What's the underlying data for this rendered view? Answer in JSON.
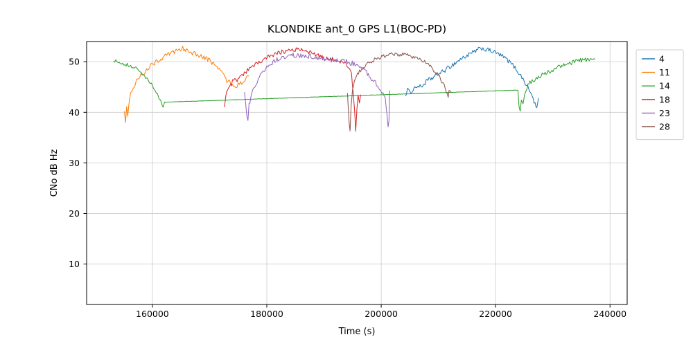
{
  "figure": {
    "title": "KLONDIKE ant_0 GPS L1(BOC-PD)"
  },
  "chart_data": {
    "type": "line",
    "title": "KLONDIKE ant_0 GPS L1(BOC-PD)",
    "xlabel": "Time (s)",
    "ylabel": "CNo dB Hz",
    "xlim": [
      148500,
      243000
    ],
    "ylim": [
      2,
      54
    ],
    "xticks": [
      160000,
      180000,
      200000,
      220000,
      240000
    ],
    "yticks": [
      10,
      20,
      30,
      40,
      50
    ],
    "grid": true,
    "grid_color": "#cccccc",
    "axis_color": "#000000",
    "legend": {
      "position": "outside-right",
      "entries": [
        "4",
        "11",
        "14",
        "18",
        "23",
        "28"
      ]
    },
    "series": [
      {
        "name": "4",
        "color": "#1f77b4",
        "segments": [
          {
            "noise": 0.45,
            "points": [
              [
                204200,
                43.2
              ],
              [
                204600,
                44.6
              ],
              [
                205000,
                43.8
              ],
              [
                205600,
                44.6
              ],
              [
                206200,
                45.2
              ],
              [
                207000,
                45.0
              ],
              [
                208000,
                46.2
              ],
              [
                209000,
                46.8
              ],
              [
                210000,
                47.6
              ],
              [
                211000,
                48.2
              ],
              [
                212000,
                49.0
              ],
              [
                213000,
                49.8
              ],
              [
                214000,
                50.6
              ],
              [
                215000,
                51.2
              ],
              [
                216000,
                51.8
              ],
              [
                217000,
                52.4
              ],
              [
                217600,
                52.7
              ],
              [
                218300,
                52.4
              ],
              [
                219000,
                52.2
              ],
              [
                220000,
                51.8
              ],
              [
                221000,
                51.2
              ],
              [
                221800,
                50.6
              ],
              [
                222600,
                49.8
              ],
              [
                223400,
                48.8
              ],
              [
                224200,
                47.6
              ],
              [
                225000,
                46.2
              ],
              [
                225800,
                44.6
              ],
              [
                226400,
                43.2
              ],
              [
                226900,
                41.6
              ],
              [
                227200,
                40.8
              ],
              [
                227500,
                42.8
              ]
            ]
          }
        ]
      },
      {
        "name": "11",
        "color": "#ff7f0e",
        "segments": [
          {
            "noise": 0.5,
            "points": [
              [
                155100,
                40.2
              ],
              [
                155300,
                38.4
              ],
              [
                155500,
                41.0
              ],
              [
                155700,
                39.6
              ],
              [
                156000,
                43.0
              ],
              [
                156400,
                44.2
              ],
              [
                157000,
                45.8
              ],
              [
                157800,
                47.0
              ],
              [
                158600,
                48.0
              ],
              [
                159500,
                49.0
              ],
              [
                160500,
                49.9
              ],
              [
                161500,
                50.6
              ],
              [
                162500,
                51.2
              ],
              [
                163500,
                51.8
              ],
              [
                164500,
                52.2
              ],
              [
                165300,
                52.6
              ],
              [
                166000,
                52.4
              ],
              [
                167000,
                51.8
              ],
              [
                168000,
                51.2
              ],
              [
                169000,
                50.8
              ],
              [
                170000,
                50.2
              ],
              [
                170800,
                49.6
              ],
              [
                171500,
                48.8
              ],
              [
                172300,
                47.6
              ],
              [
                173000,
                46.4
              ],
              [
                173800,
                45.6
              ],
              [
                174600,
                45.2
              ],
              [
                175400,
                45.8
              ],
              [
                176200,
                46.4
              ],
              [
                176900,
                47.2
              ]
            ]
          }
        ]
      },
      {
        "name": "14",
        "color": "#2ca02c",
        "segments": [
          {
            "noise": 0.35,
            "points": [
              [
                153200,
                50.2
              ],
              [
                154000,
                50.0
              ],
              [
                154800,
                49.7
              ],
              [
                155600,
                49.4
              ],
              [
                156400,
                49.0
              ],
              [
                157200,
                48.6
              ],
              [
                157800,
                48.2
              ],
              [
                158400,
                47.4
              ],
              [
                159000,
                46.6
              ],
              [
                159600,
                45.8
              ],
              [
                160200,
                44.8
              ],
              [
                160700,
                43.8
              ],
              [
                161200,
                42.8
              ],
              [
                161600,
                41.8
              ],
              [
                161900,
                41.2
              ],
              [
                162100,
                42.0
              ]
            ]
          },
          {
            "noise": 0.03,
            "points": [
              [
                162100,
                42.0
              ],
              [
                223900,
                44.4
              ]
            ]
          },
          {
            "noise": 0.45,
            "points": [
              [
                223900,
                44.4
              ],
              [
                224100,
                41.0
              ],
              [
                224300,
                39.8
              ],
              [
                224500,
                42.6
              ],
              [
                224800,
                41.4
              ],
              [
                225100,
                43.8
              ],
              [
                225500,
                45.0
              ],
              [
                226000,
                45.8
              ],
              [
                226800,
                46.4
              ],
              [
                227800,
                47.2
              ],
              [
                229000,
                47.9
              ],
              [
                230200,
                48.5
              ],
              [
                231400,
                49.1
              ],
              [
                232600,
                49.6
              ],
              [
                233800,
                50.0
              ],
              [
                235000,
                50.3
              ],
              [
                236200,
                50.5
              ],
              [
                237400,
                50.4
              ]
            ]
          }
        ]
      },
      {
        "name": "18",
        "color": "#d62728",
        "segments": [
          {
            "noise": 0.45,
            "points": [
              [
                172600,
                41.0
              ],
              [
                172800,
                43.0
              ],
              [
                173100,
                44.2
              ],
              [
                173500,
                45.2
              ],
              [
                174000,
                46.0
              ],
              [
                174400,
                46.6
              ],
              [
                174800,
                46.2
              ],
              [
                175300,
                47.0
              ],
              [
                175900,
                47.6
              ],
              [
                176600,
                48.2
              ],
              [
                177400,
                48.9
              ],
              [
                178300,
                49.6
              ],
              [
                179300,
                50.3
              ],
              [
                180300,
                50.9
              ],
              [
                181300,
                51.4
              ],
              [
                182300,
                51.8
              ],
              [
                183300,
                52.1
              ],
              [
                184300,
                52.3
              ],
              [
                185300,
                52.5
              ],
              [
                186100,
                52.4
              ],
              [
                187000,
                52.1
              ],
              [
                188000,
                51.7
              ],
              [
                189000,
                51.2
              ],
              [
                190000,
                50.9
              ],
              [
                191000,
                50.6
              ],
              [
                192000,
                50.4
              ],
              [
                193000,
                50.1
              ],
              [
                193800,
                49.7
              ],
              [
                194400,
                49.0
              ],
              [
                194800,
                47.6
              ],
              [
                195100,
                44.0
              ],
              [
                195350,
                40.0
              ],
              [
                195550,
                36.5
              ],
              [
                195750,
                40.5
              ],
              [
                195950,
                43.0
              ],
              [
                196200,
                42.0
              ],
              [
                196400,
                43.5
              ]
            ]
          }
        ]
      },
      {
        "name": "23",
        "color": "#9467bd",
        "segments": [
          {
            "noise": 0.5,
            "points": [
              [
                176100,
                44.0
              ],
              [
                176300,
                41.5
              ],
              [
                176500,
                39.0
              ],
              [
                176700,
                38.0
              ],
              [
                176900,
                41.5
              ],
              [
                177200,
                43.0
              ],
              [
                177600,
                44.5
              ],
              [
                178100,
                45.8
              ],
              [
                178700,
                47.0
              ],
              [
                179400,
                48.2
              ],
              [
                180200,
                49.2
              ],
              [
                181100,
                50.0
              ],
              [
                182100,
                50.6
              ],
              [
                183100,
                51.0
              ],
              [
                184100,
                51.2
              ],
              [
                185100,
                51.3
              ],
              [
                186100,
                51.2
              ],
              [
                187100,
                51.1
              ],
              [
                188100,
                51.0
              ],
              [
                189100,
                50.8
              ],
              [
                190100,
                50.6
              ],
              [
                191100,
                50.4
              ],
              [
                192100,
                50.2
              ],
              [
                193100,
                50.1
              ],
              [
                194100,
                50.0
              ],
              [
                195100,
                49.6
              ],
              [
                196100,
                49.1
              ],
              [
                197100,
                48.2
              ],
              [
                198100,
                46.9
              ],
              [
                199000,
                45.8
              ],
              [
                199700,
                44.8
              ],
              [
                200300,
                43.9
              ],
              [
                200700,
                42.8
              ],
              [
                201000,
                40.0
              ],
              [
                201200,
                36.8
              ],
              [
                201350,
                38.5
              ],
              [
                201500,
                44.3
              ]
            ]
          }
        ]
      },
      {
        "name": "28",
        "color": "#8c564b",
        "segments": [
          {
            "noise": 0.4,
            "points": [
              [
                194100,
                43.8
              ],
              [
                194250,
                41.0
              ],
              [
                194400,
                38.0
              ],
              [
                194550,
                36.2
              ],
              [
                194750,
                41.5
              ],
              [
                195000,
                44.5
              ],
              [
                195300,
                46.0
              ],
              [
                195700,
                47.2
              ],
              [
                196200,
                48.0
              ],
              [
                196800,
                48.8
              ],
              [
                197500,
                49.5
              ],
              [
                198300,
                50.1
              ],
              [
                199200,
                50.6
              ],
              [
                200100,
                51.0
              ],
              [
                201100,
                51.3
              ],
              [
                202100,
                51.5
              ],
              [
                203100,
                51.5
              ],
              [
                204100,
                51.4
              ],
              [
                205100,
                51.1
              ],
              [
                206100,
                50.8
              ],
              [
                207100,
                50.3
              ],
              [
                208100,
                49.6
              ],
              [
                209000,
                48.6
              ],
              [
                209800,
                47.6
              ],
              [
                210400,
                46.6
              ],
              [
                211000,
                45.4
              ],
              [
                211400,
                44.2
              ],
              [
                211700,
                43.2
              ],
              [
                212000,
                44.6
              ],
              [
                212300,
                44.0
              ]
            ]
          }
        ]
      }
    ]
  }
}
